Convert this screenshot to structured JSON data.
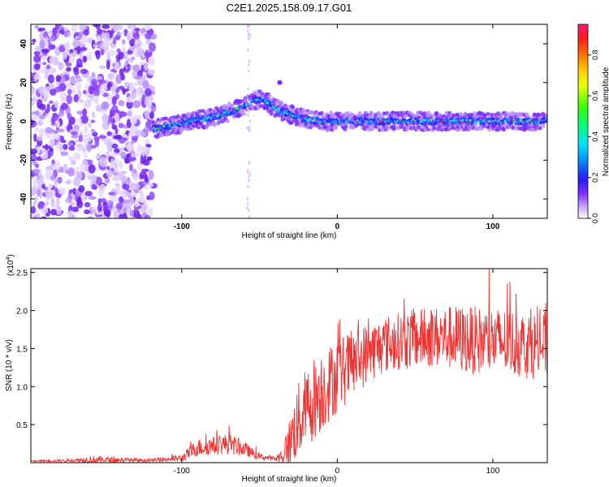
{
  "chart_data": [
    {
      "type": "heatmap",
      "title": "C2E1.2025.158.09.17.G01",
      "xlabel": "Height of straight line (km)",
      "ylabel": "Frequency (Hz)",
      "xlim": [
        -197,
        135
      ],
      "ylim": [
        -50,
        50
      ],
      "x_ticks": [
        -100,
        0,
        100
      ],
      "y_ticks": [
        -40,
        -20,
        0,
        20,
        40
      ],
      "colorbar": {
        "label": "Normalized spectral amplitude",
        "range": [
          0,
          0.95
        ],
        "ticks": [
          0.0,
          0.2,
          0.4,
          0.6,
          0.8
        ]
      },
      "ridge_track": {
        "description_hint": "dominant frequency ridge",
        "x": [
          -118,
          -100,
          -80,
          -65,
          -55,
          -48,
          -42,
          -35,
          -28,
          -20,
          -10,
          0,
          20,
          40,
          60,
          80,
          100,
          120,
          135
        ],
        "y": [
          -4,
          -1,
          2,
          6,
          10,
          12,
          8,
          5,
          3,
          1,
          0,
          0,
          0,
          0,
          0,
          0,
          0,
          0,
          0
        ]
      },
      "noise_region_x": [
        -197,
        -118
      ],
      "grid": false
    },
    {
      "type": "line",
      "xlabel": "Height of straight line (km)",
      "ylabel": "SNR (10 * v/v)",
      "y_scale_label": "(x10",
      "y_scale_exp": "4",
      "xlim": [
        -197,
        135
      ],
      "ylim": [
        0,
        2.55
      ],
      "x_ticks": [
        -100,
        0,
        100
      ],
      "y_ticks": [
        0.5,
        1.0,
        1.5,
        2.0,
        2.5
      ],
      "y_tick_labels": [
        "0.5",
        "1.0",
        "1.5",
        "2.0",
        "2.5"
      ],
      "series": [
        {
          "color": "#ee3333",
          "envelope": {
            "x": [
              -197,
              -170,
              -160,
              -120,
              -100,
              -90,
              -80,
              -70,
              -60,
              -50,
              -40,
              -35,
              -30,
              -25,
              -20,
              -15,
              -10,
              -5,
              0,
              10,
              20,
              30,
              40,
              50,
              60,
              70,
              80,
              90,
              100,
              110,
              120,
              135
            ],
            "mean": [
              0.02,
              0.03,
              0.04,
              0.03,
              0.06,
              0.2,
              0.22,
              0.25,
              0.18,
              0.08,
              0.05,
              0.1,
              0.3,
              0.55,
              0.7,
              0.85,
              0.95,
              1.05,
              1.15,
              1.3,
              1.45,
              1.55,
              1.6,
              1.62,
              1.65,
              1.65,
              1.62,
              1.6,
              1.6,
              1.58,
              1.55,
              1.55
            ],
            "amp": [
              0.01,
              0.02,
              0.05,
              0.02,
              0.05,
              0.12,
              0.12,
              0.14,
              0.1,
              0.04,
              0.03,
              0.12,
              0.35,
              0.5,
              0.55,
              0.55,
              0.55,
              0.5,
              0.5,
              0.45,
              0.4,
              0.38,
              0.38,
              0.4,
              0.4,
              0.42,
              0.45,
              0.45,
              0.45,
              0.45,
              0.45,
              0.45
            ]
          }
        }
      ]
    }
  ]
}
